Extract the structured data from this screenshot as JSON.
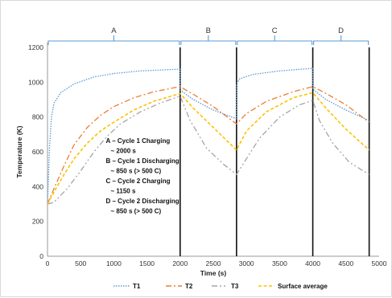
{
  "chart_data": {
    "type": "line",
    "title": "",
    "xlabel": "Time (s)",
    "ylabel": "Temperature (K)",
    "xlim": [
      0,
      5000
    ],
    "ylim": [
      0,
      1200
    ],
    "x_ticks": [
      0,
      500,
      1000,
      1500,
      2000,
      2500,
      3000,
      3500,
      4000,
      4500,
      5000
    ],
    "y_ticks": [
      0,
      200,
      400,
      600,
      800,
      1000,
      1200
    ],
    "grid": false,
    "legend_position": "bottom",
    "phase_boundaries": [
      2000,
      2850,
      4000,
      4850
    ],
    "phases": [
      {
        "label": "A",
        "start": 0,
        "end": 2000
      },
      {
        "label": "B",
        "start": 2000,
        "end": 2850
      },
      {
        "label": "C",
        "start": 2850,
        "end": 4000
      },
      {
        "label": "D",
        "start": 4000,
        "end": 4850
      }
    ],
    "annotation_lines": [
      "A – Cycle 1 Charging",
      "~ 2000 s",
      "B – Cycle 1 Discharging",
      "~ 850 s (> 500 C)",
      "C – Cycle 2 Charging",
      "~ 1150 s",
      "D – Cycle 2 Discharging",
      "~ 850 s (> 500 C)"
    ],
    "series": [
      {
        "name": "T1",
        "color": "#5b9bd5",
        "dash": "1.5,1.5",
        "points": [
          [
            0,
            300
          ],
          [
            30,
            620
          ],
          [
            60,
            800
          ],
          [
            100,
            880
          ],
          [
            200,
            940
          ],
          [
            400,
            990
          ],
          [
            700,
            1030
          ],
          [
            1000,
            1050
          ],
          [
            1400,
            1065
          ],
          [
            2000,
            1075
          ],
          [
            2000,
            955
          ],
          [
            2200,
            900
          ],
          [
            2500,
            840
          ],
          [
            2850,
            790
          ],
          [
            2850,
            990
          ],
          [
            2900,
            1020
          ],
          [
            3100,
            1045
          ],
          [
            3500,
            1065
          ],
          [
            4000,
            1080
          ],
          [
            4000,
            960
          ],
          [
            4200,
            900
          ],
          [
            4500,
            840
          ],
          [
            4850,
            780
          ]
        ]
      },
      {
        "name": "T2",
        "color": "#ed7d31",
        "dash": "7,3,2,3",
        "points": [
          [
            0,
            300
          ],
          [
            100,
            390
          ],
          [
            250,
            520
          ],
          [
            400,
            640
          ],
          [
            600,
            740
          ],
          [
            800,
            810
          ],
          [
            1000,
            860
          ],
          [
            1300,
            910
          ],
          [
            1600,
            945
          ],
          [
            2000,
            975
          ],
          [
            2000,
            975
          ],
          [
            2200,
            930
          ],
          [
            2500,
            860
          ],
          [
            2850,
            760
          ],
          [
            2850,
            760
          ],
          [
            3000,
            820
          ],
          [
            3300,
            890
          ],
          [
            3700,
            945
          ],
          [
            4000,
            975
          ],
          [
            4000,
            975
          ],
          [
            4200,
            935
          ],
          [
            4500,
            870
          ],
          [
            4850,
            770
          ]
        ]
      },
      {
        "name": "T3",
        "color": "#a5a5a5",
        "dash": "7,3,2,3,2,3",
        "points": [
          [
            0,
            300
          ],
          [
            100,
            310
          ],
          [
            300,
            390
          ],
          [
            500,
            490
          ],
          [
            700,
            600
          ],
          [
            900,
            690
          ],
          [
            1100,
            760
          ],
          [
            1400,
            830
          ],
          [
            1700,
            880
          ],
          [
            2000,
            920
          ],
          [
            2000,
            920
          ],
          [
            2150,
            780
          ],
          [
            2400,
            620
          ],
          [
            2650,
            530
          ],
          [
            2850,
            470
          ],
          [
            2850,
            470
          ],
          [
            3000,
            560
          ],
          [
            3200,
            680
          ],
          [
            3500,
            800
          ],
          [
            3800,
            870
          ],
          [
            4000,
            895
          ],
          [
            4000,
            895
          ],
          [
            4100,
            780
          ],
          [
            4300,
            650
          ],
          [
            4550,
            540
          ],
          [
            4850,
            470
          ]
        ]
      },
      {
        "name": "Surface average",
        "color": "#ffc000",
        "dash": "4,2.5",
        "points": [
          [
            0,
            300
          ],
          [
            100,
            370
          ],
          [
            250,
            470
          ],
          [
            400,
            560
          ],
          [
            600,
            650
          ],
          [
            800,
            720
          ],
          [
            1000,
            770
          ],
          [
            1300,
            840
          ],
          [
            1600,
            890
          ],
          [
            2000,
            935
          ],
          [
            2000,
            935
          ],
          [
            2200,
            850
          ],
          [
            2500,
            740
          ],
          [
            2850,
            610
          ],
          [
            2850,
            610
          ],
          [
            3000,
            720
          ],
          [
            3300,
            830
          ],
          [
            3700,
            910
          ],
          [
            4000,
            940
          ],
          [
            4000,
            940
          ],
          [
            4200,
            850
          ],
          [
            4500,
            730
          ],
          [
            4850,
            610
          ]
        ]
      }
    ]
  }
}
